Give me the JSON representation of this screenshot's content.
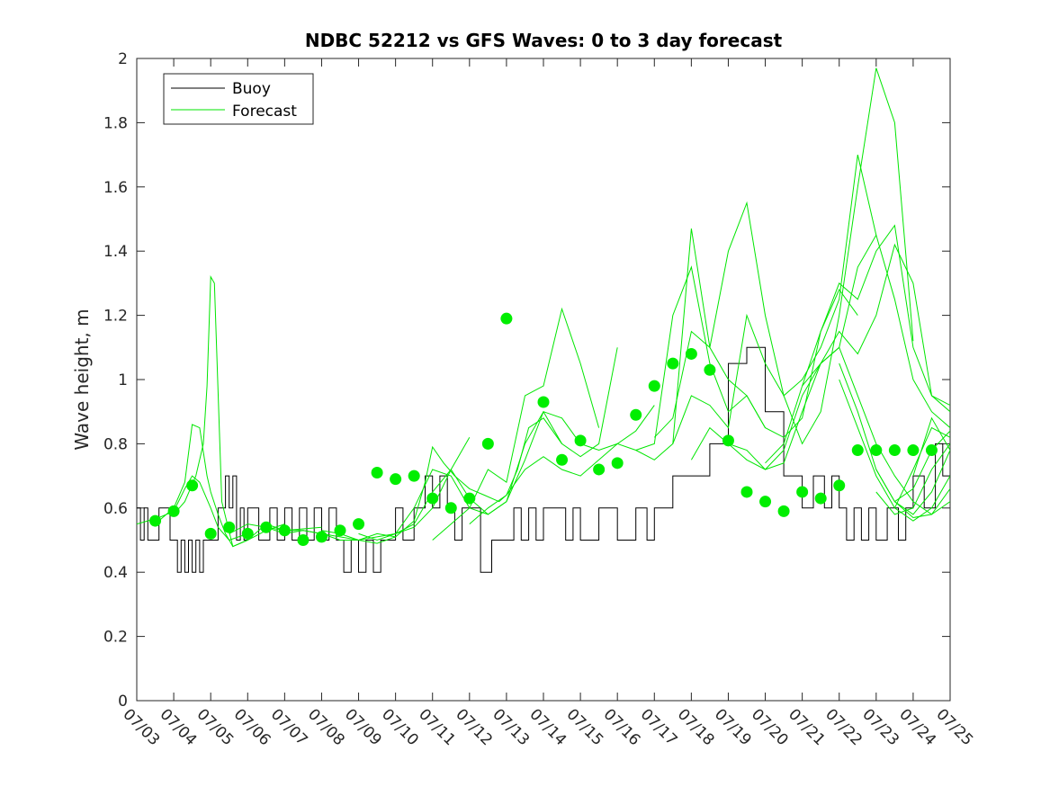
{
  "chart_data": {
    "type": "line",
    "title": "NDBC 52212 vs GFS Waves: 0 to 3 day forecast",
    "xlabel": "",
    "ylabel": "Wave height, m",
    "xlim": [
      "07/03",
      "07/25"
    ],
    "ylim": [
      0,
      2
    ],
    "y_ticks": [
      "0",
      "0.2",
      "0.4",
      "0.6",
      "0.8",
      "1",
      "1.2",
      "1.4",
      "1.6",
      "1.8",
      "2"
    ],
    "x_ticks": [
      "07/03",
      "07/04",
      "07/05",
      "07/06",
      "07/07",
      "07/08",
      "07/09",
      "07/10",
      "07/11",
      "07/12",
      "07/13",
      "07/14",
      "07/15",
      "07/16",
      "07/17",
      "07/18",
      "07/19",
      "07/20",
      "07/21",
      "07/22",
      "07/23",
      "07/24",
      "07/25"
    ],
    "legend_position": "top-left",
    "grid": false,
    "colors": {
      "buoy": "#000000",
      "forecast": "#00e600",
      "marker": "#00ee00"
    },
    "series": [
      {
        "name": "Buoy",
        "x": [
          0.0,
          0.1,
          0.2,
          0.3,
          0.5,
          0.6,
          0.9,
          1.1,
          1.2,
          1.3,
          1.4,
          1.5,
          1.6,
          1.7,
          1.8,
          1.9,
          2.0,
          2.2,
          2.4,
          2.5,
          2.6,
          2.7,
          2.8,
          2.9,
          3.0,
          3.3,
          3.6,
          3.8,
          4.0,
          4.2,
          4.4,
          4.6,
          4.8,
          5.0,
          5.2,
          5.4,
          5.6,
          5.8,
          6.0,
          6.2,
          6.4,
          6.6,
          6.8,
          7.0,
          7.2,
          7.5,
          7.8,
          8.0,
          8.2,
          8.4,
          8.6,
          8.8,
          9.0,
          9.3,
          9.6,
          9.8,
          10.0,
          10.2,
          10.4,
          10.6,
          10.8,
          11.0,
          11.3,
          11.6,
          11.8,
          12.0,
          12.5,
          13.0,
          13.5,
          13.8,
          14.0,
          14.5,
          15.0,
          15.5,
          16.0,
          16.5,
          17.0,
          17.5,
          18.0,
          18.3,
          18.6,
          18.8,
          19.0,
          19.2,
          19.4,
          19.6,
          19.8,
          20.0,
          20.3,
          20.6,
          20.8,
          21.0,
          21.3,
          21.6,
          21.8,
          22.0
        ],
        "y": [
          0.6,
          0.5,
          0.6,
          0.5,
          0.5,
          0.6,
          0.5,
          0.4,
          0.5,
          0.4,
          0.5,
          0.4,
          0.5,
          0.4,
          0.5,
          0.5,
          0.5,
          0.6,
          0.7,
          0.6,
          0.7,
          0.5,
          0.6,
          0.5,
          0.6,
          0.5,
          0.6,
          0.5,
          0.6,
          0.5,
          0.6,
          0.5,
          0.6,
          0.5,
          0.6,
          0.5,
          0.4,
          0.5,
          0.4,
          0.5,
          0.4,
          0.5,
          0.5,
          0.6,
          0.5,
          0.6,
          0.7,
          0.6,
          0.7,
          0.6,
          0.5,
          0.6,
          0.6,
          0.4,
          0.5,
          0.5,
          0.5,
          0.6,
          0.5,
          0.6,
          0.5,
          0.6,
          0.6,
          0.5,
          0.6,
          0.5,
          0.6,
          0.5,
          0.6,
          0.5,
          0.6,
          0.7,
          0.7,
          0.8,
          1.05,
          1.1,
          0.9,
          0.7,
          0.6,
          0.7,
          0.6,
          0.7,
          0.6,
          0.5,
          0.6,
          0.5,
          0.6,
          0.5,
          0.6,
          0.5,
          0.6,
          0.7,
          0.6,
          0.8,
          0.7,
          0.7
        ]
      },
      {
        "name": "Forecast",
        "runs": [
          {
            "x": [
              0.0,
              0.3,
              0.6,
              1.0,
              1.3,
              1.5,
              1.7,
              2.0,
              2.2,
              2.5,
              3.0
            ],
            "y": [
              0.55,
              0.56,
              0.57,
              0.59,
              0.66,
              0.7,
              0.68,
              0.6,
              0.54,
              0.5,
              0.52
            ]
          },
          {
            "x": [
              0.5,
              0.8,
              1.0,
              1.3,
              1.5,
              1.7,
              1.9,
              2.0,
              2.2,
              2.4,
              2.6,
              3.0,
              3.5,
              4.0
            ],
            "y": [
              0.55,
              0.58,
              0.6,
              0.68,
              0.86,
              0.85,
              0.7,
              0.65,
              0.58,
              0.52,
              0.48,
              0.5,
              0.53,
              0.55
            ]
          },
          {
            "x": [
              1.0,
              1.3,
              1.6,
              1.8,
              1.9,
              2.0,
              2.1,
              2.3,
              2.6,
              3.0,
              3.5,
              4.0,
              5.0
            ],
            "y": [
              0.58,
              0.62,
              0.7,
              0.8,
              0.98,
              1.32,
              1.3,
              0.62,
              0.48,
              0.5,
              0.55,
              0.53,
              0.54
            ]
          },
          {
            "x": [
              2.5,
              3.0,
              3.5,
              4.0,
              4.5,
              5.0,
              5.5,
              6.0,
              6.5,
              7.0
            ],
            "y": [
              0.52,
              0.55,
              0.54,
              0.53,
              0.53,
              0.52,
              0.51,
              0.5,
              0.52,
              0.51
            ]
          },
          {
            "x": [
              3.5,
              4.0,
              4.5,
              5.0,
              5.5,
              6.0,
              6.5,
              7.0,
              7.5,
              8.0,
              8.5,
              9.0
            ],
            "y": [
              0.54,
              0.52,
              0.53,
              0.52,
              0.5,
              0.5,
              0.51,
              0.52,
              0.54,
              0.6,
              0.72,
              0.82
            ]
          },
          {
            "x": [
              5.0,
              5.5,
              6.0,
              6.5,
              7.0,
              7.5,
              7.8,
              8.0,
              8.3,
              8.6,
              9.0,
              9.4,
              9.8,
              10.0,
              10.3,
              10.6,
              11.0,
              11.5
            ],
            "y": [
              0.53,
              0.52,
              0.5,
              0.49,
              0.51,
              0.56,
              0.68,
              0.79,
              0.74,
              0.7,
              0.66,
              0.64,
              0.62,
              0.64,
              0.72,
              0.85,
              0.88,
              0.8
            ]
          },
          {
            "x": [
              6.0,
              6.5,
              7.0,
              7.5,
              8.0,
              8.5,
              9.0,
              9.5,
              10.0,
              10.5,
              11.0,
              11.5,
              12.0,
              12.5
            ],
            "y": [
              0.52,
              0.5,
              0.52,
              0.6,
              0.72,
              0.7,
              0.6,
              0.72,
              0.68,
              0.95,
              0.98,
              1.22,
              1.05,
              0.85
            ]
          },
          {
            "x": [
              7.0,
              7.5,
              8.0,
              8.5,
              9.0,
              9.5,
              10.0,
              10.5,
              11.0,
              11.5,
              12.0,
              12.5,
              13.0
            ],
            "y": [
              0.52,
              0.55,
              0.65,
              0.72,
              0.63,
              0.58,
              0.62,
              0.8,
              0.9,
              0.8,
              0.76,
              0.8,
              1.1
            ]
          },
          {
            "x": [
              8.0,
              8.5,
              9.0,
              9.5,
              10.0,
              10.5,
              11.0,
              11.5,
              12.0,
              12.5,
              13.0,
              13.5,
              14.0
            ],
            "y": [
              0.5,
              0.55,
              0.6,
              0.58,
              0.62,
              0.75,
              0.9,
              0.88,
              0.8,
              0.78,
              0.8,
              0.84,
              0.92
            ]
          },
          {
            "x": [
              9.0,
              9.5,
              10.0,
              10.5,
              11.0,
              11.5,
              12.0,
              12.5,
              13.0,
              13.5,
              14.0,
              14.5,
              15.0,
              15.5,
              16.0,
              16.5,
              17.0
            ],
            "y": [
              0.55,
              0.6,
              0.64,
              0.72,
              0.76,
              0.72,
              0.7,
              0.75,
              0.8,
              0.78,
              0.75,
              0.8,
              1.47,
              1.1,
              1.0,
              0.95,
              0.85
            ]
          },
          {
            "x": [
              13.5,
              14.0,
              14.5,
              15.0,
              15.5,
              16.0,
              16.5,
              17.0,
              17.5,
              18.0,
              18.5,
              19.0,
              19.5
            ],
            "y": [
              0.78,
              0.8,
              1.2,
              1.35,
              1.05,
              0.9,
              0.95,
              0.85,
              0.82,
              0.88,
              1.15,
              1.28,
              1.2
            ]
          },
          {
            "x": [
              14.0,
              14.5,
              15.0,
              15.5,
              16.0,
              16.5,
              17.0,
              17.5,
              18.0,
              18.5,
              19.0,
              19.5,
              20.0
            ],
            "y": [
              0.82,
              0.88,
              1.15,
              1.1,
              1.4,
              1.55,
              1.2,
              0.95,
              1.0,
              1.1,
              1.25,
              1.7,
              1.45
            ]
          },
          {
            "x": [
              14.5,
              15.0,
              15.5,
              16.0,
              16.5,
              17.0,
              17.5,
              18.0,
              18.5,
              19.0,
              19.5,
              20.0,
              20.5,
              21.0
            ],
            "y": [
              0.8,
              0.95,
              0.92,
              0.85,
              1.2,
              1.05,
              0.95,
              0.8,
              0.9,
              1.2,
              1.6,
              1.97,
              1.8,
              1.12
            ]
          },
          {
            "x": [
              15.0,
              15.5,
              16.0,
              16.5,
              17.0,
              17.5,
              18.0,
              18.5,
              19.0,
              19.5,
              20.0,
              20.5,
              21.0,
              21.5,
              22.0
            ],
            "y": [
              0.75,
              0.85,
              0.8,
              0.78,
              0.72,
              0.74,
              0.9,
              1.05,
              1.15,
              1.08,
              1.2,
              1.42,
              1.3,
              0.95,
              0.92
            ]
          },
          {
            "x": [
              16.0,
              16.5,
              17.0,
              17.5,
              18.0,
              18.5,
              19.0,
              19.5,
              20.0,
              20.5,
              21.0,
              21.5,
              22.0,
              22.5
            ],
            "y": [
              0.8,
              0.75,
              0.72,
              0.78,
              0.95,
              1.05,
              1.1,
              1.35,
              1.45,
              1.25,
              1.0,
              0.9,
              0.85,
              0.8
            ]
          },
          {
            "x": [
              17.0,
              17.5,
              18.0,
              18.5,
              19.0,
              19.5,
              20.0,
              20.5,
              21.0,
              21.5,
              22.0
            ],
            "y": [
              0.74,
              0.8,
              0.98,
              1.15,
              1.3,
              1.25,
              1.4,
              1.48,
              1.1,
              0.95,
              0.9
            ]
          },
          {
            "x": [
              18.0,
              18.5,
              19.0,
              19.5,
              20.0,
              20.5,
              21.0,
              21.5,
              22.0
            ],
            "y": [
              0.98,
              1.05,
              1.1,
              0.95,
              0.8,
              0.7,
              0.62,
              0.58,
              0.62
            ]
          },
          {
            "x": [
              19.0,
              19.5,
              20.0,
              20.5,
              21.0,
              21.5,
              22.0
            ],
            "y": [
              1.05,
              0.9,
              0.72,
              0.62,
              0.57,
              0.58,
              0.66
            ]
          },
          {
            "x": [
              19.0,
              19.5,
              20.0,
              20.5,
              21.0,
              21.5,
              22.0
            ],
            "y": [
              1.0,
              0.85,
              0.7,
              0.6,
              0.56,
              0.6,
              0.7
            ]
          },
          {
            "x": [
              20.0,
              20.5,
              21.0,
              21.5,
              22.0
            ],
            "y": [
              0.72,
              0.62,
              0.58,
              0.65,
              0.78
            ]
          },
          {
            "x": [
              20.0,
              20.5,
              21.0,
              21.5,
              22.0
            ],
            "y": [
              0.65,
              0.58,
              0.6,
              0.72,
              0.8
            ]
          },
          {
            "x": [
              20.5,
              21.0,
              21.5,
              22.0
            ],
            "y": [
              0.62,
              0.66,
              0.78,
              0.84
            ]
          },
          {
            "x": [
              20.5,
              21.0,
              21.5,
              22.0
            ],
            "y": [
              0.6,
              0.72,
              0.85,
              0.82
            ]
          },
          {
            "x": [
              21.0,
              21.5,
              22.0
            ],
            "y": [
              0.7,
              0.88,
              0.78
            ]
          }
        ]
      },
      {
        "name": "markers",
        "x": [
          0.5,
          1.0,
          1.5,
          2.0,
          2.5,
          3.0,
          3.5,
          4.0,
          4.5,
          5.0,
          5.5,
          6.0,
          6.5,
          7.0,
          7.5,
          8.0,
          8.5,
          9.0,
          9.5,
          10.0,
          11.0,
          11.5,
          12.0,
          12.5,
          13.0,
          13.5,
          14.0,
          14.5,
          15.0,
          15.5,
          16.0,
          16.5,
          17.0,
          17.5,
          18.0,
          18.5,
          19.0,
          19.5,
          20.0,
          20.5,
          21.0,
          21.5
        ],
        "y": [
          0.56,
          0.59,
          0.67,
          0.52,
          0.54,
          0.52,
          0.54,
          0.53,
          0.5,
          0.51,
          0.53,
          0.55,
          0.71,
          0.69,
          0.7,
          0.63,
          0.6,
          0.63,
          0.8,
          1.19,
          0.93,
          0.75,
          0.81,
          0.72,
          0.74,
          0.89,
          0.98,
          1.05,
          1.08,
          1.03,
          0.81,
          0.65,
          0.62,
          0.59,
          0.65,
          0.63,
          0.67,
          0.78,
          0.78,
          0.78,
          0.78,
          0.78
        ]
      }
    ]
  }
}
